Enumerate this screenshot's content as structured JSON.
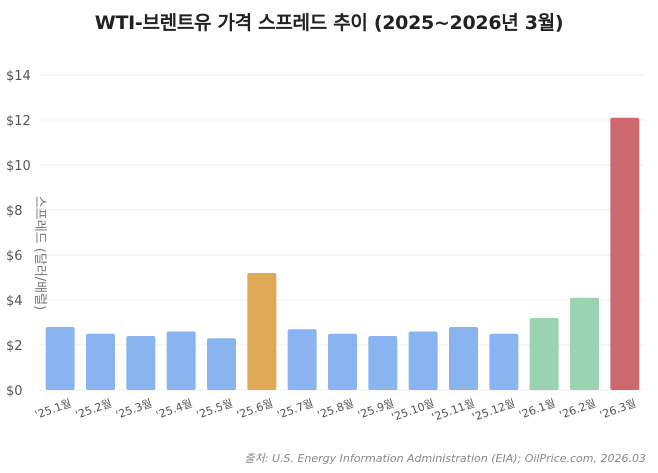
{
  "chart_data": {
    "type": "bar",
    "title": "WTI-브렌트유 가격 스프레드 추이 (2025~2026년 3월)",
    "xlabel": "",
    "ylabel": "스프레드 (달러/배럴)",
    "ylim": [
      0,
      14
    ],
    "yticks": [
      0,
      2,
      4,
      6,
      8,
      10,
      12,
      14
    ],
    "ytick_labels": [
      "$0",
      "$2",
      "$4",
      "$6",
      "$8",
      "$10",
      "$12",
      "$14"
    ],
    "grid": true,
    "categories": [
      "'25.1월",
      "'25.2월",
      "'25.3월",
      "'25.4월",
      "'25.5월",
      "'25.6월",
      "'25.7월",
      "'25.8월",
      "'25.9월",
      "'25.10월",
      "'25.11월",
      "'25.12월",
      "'26.1월",
      "'26.2월",
      "'26.3월"
    ],
    "values": [
      2.8,
      2.5,
      2.4,
      2.6,
      2.3,
      5.2,
      2.7,
      2.5,
      2.4,
      2.6,
      2.8,
      2.5,
      3.2,
      4.1,
      12.1
    ],
    "bar_colors": [
      "#8ab4ef",
      "#8ab4ef",
      "#8ab4ef",
      "#8ab4ef",
      "#8ab4ef",
      "#e0a955",
      "#8ab4ef",
      "#8ab4ef",
      "#8ab4ef",
      "#8ab4ef",
      "#8ab4ef",
      "#8ab4ef",
      "#99d3b1",
      "#99d3b1",
      "#cd6a70"
    ],
    "source": "출처: U.S. Energy Information Administration (EIA); OilPrice.com, 2026.03"
  }
}
